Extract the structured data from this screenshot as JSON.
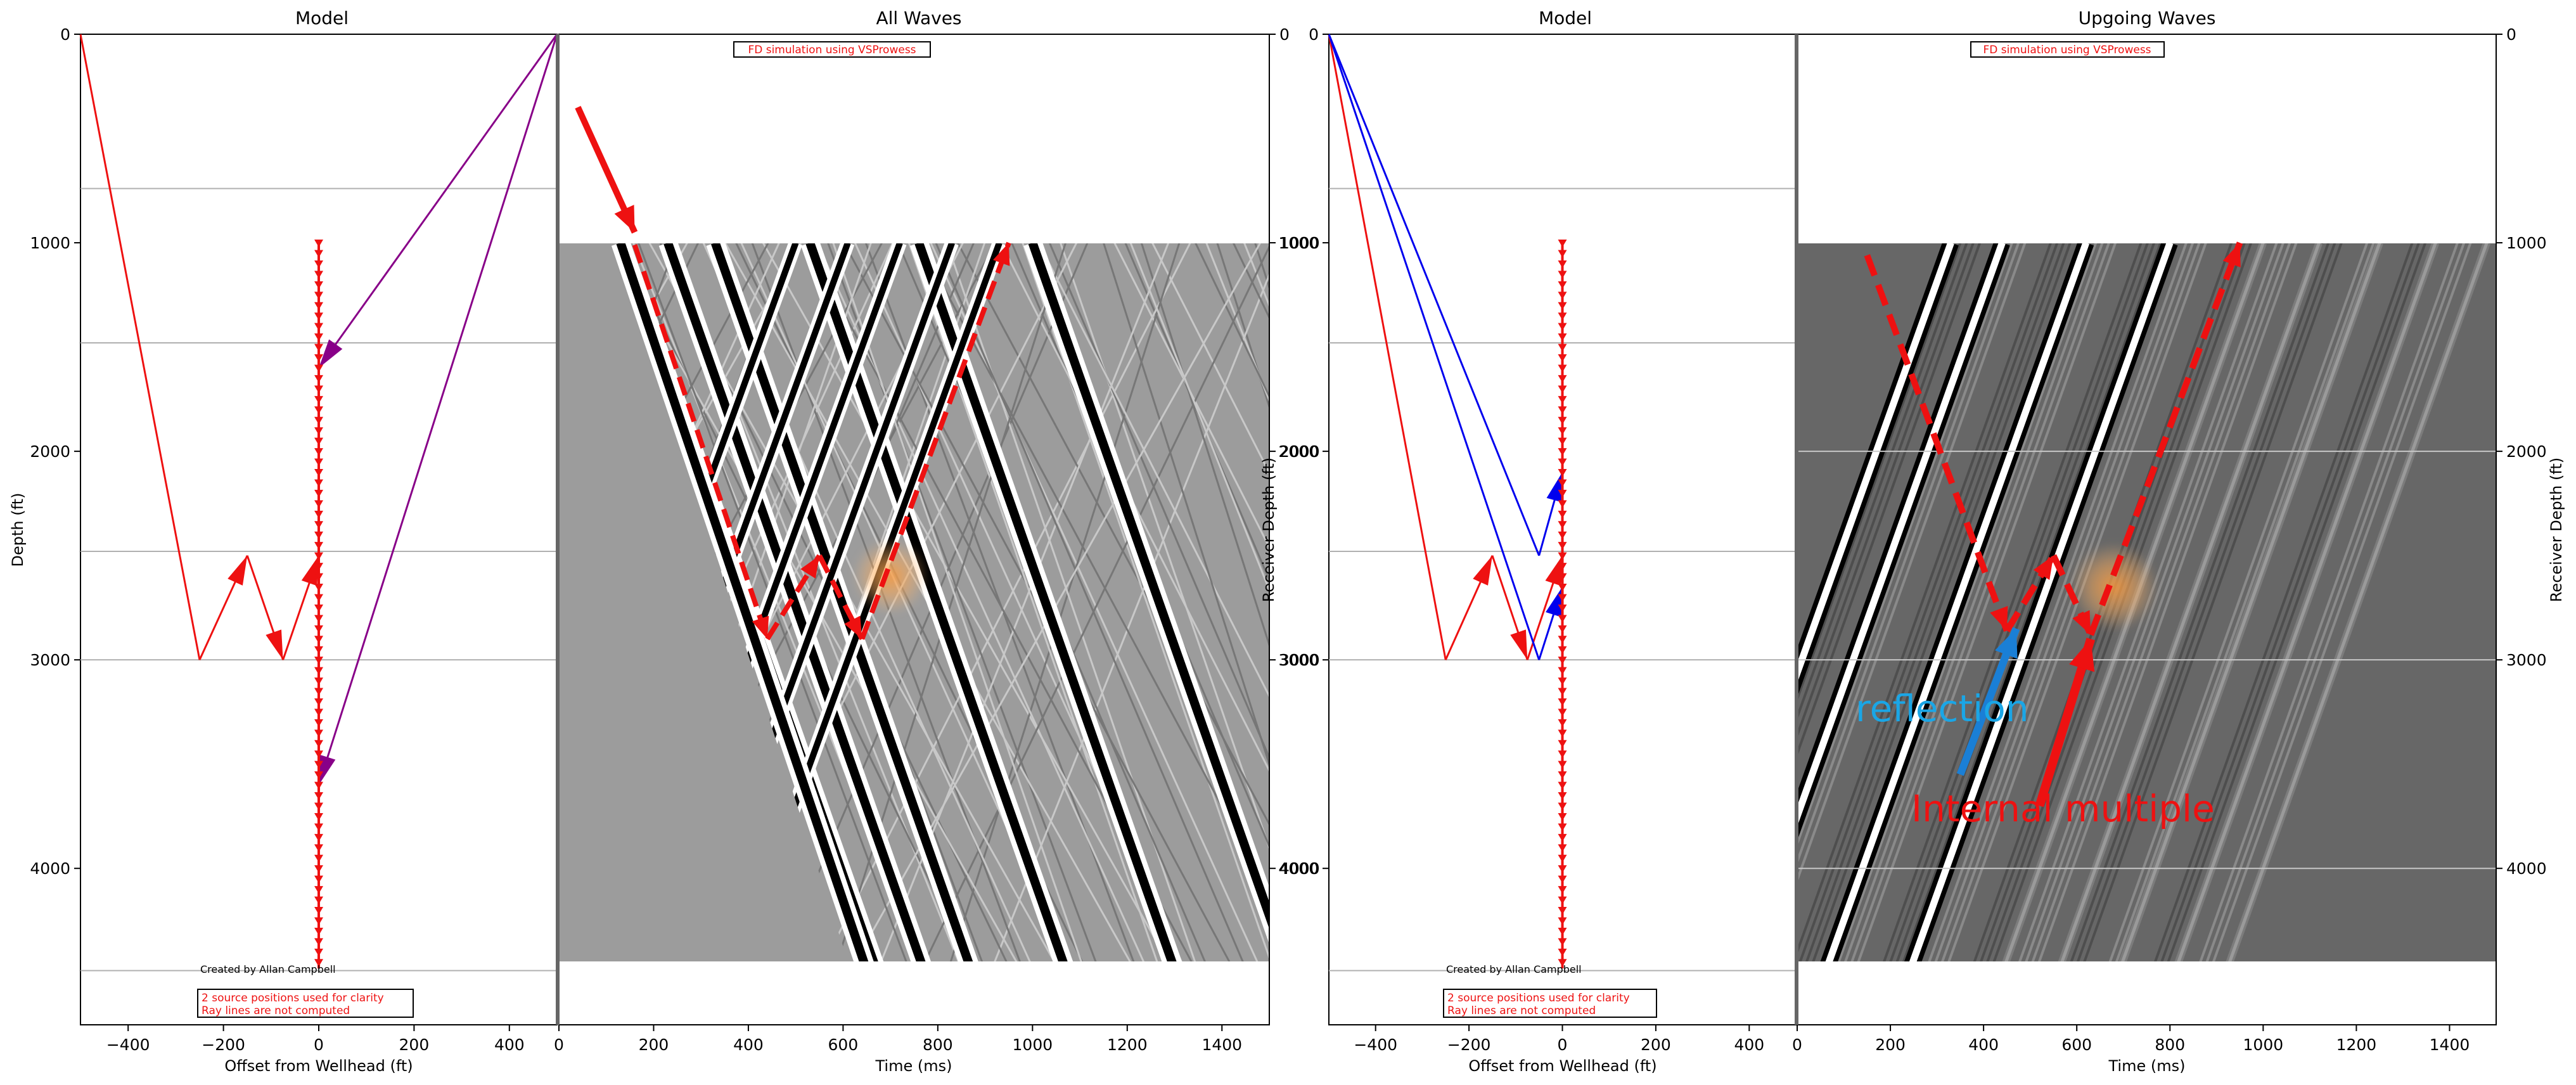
{
  "chart_data": [
    {
      "type": "scatter",
      "panel": "model-left",
      "title": "Model",
      "xlabel": "Offset from Wellhead (ft)",
      "ylabel": "Depth (ft)",
      "xlim": [
        -500,
        500
      ],
      "ylim": [
        4750,
        0
      ],
      "x_ticks": [
        "−400",
        "−200",
        "0",
        "200",
        "400"
      ],
      "y_ticks": [
        "0",
        "1000",
        "2000",
        "3000",
        "4000"
      ],
      "layer_boundaries": [
        740,
        1480,
        2480,
        3000,
        4490
      ],
      "receivers": {
        "x": 0,
        "depth_start": 1000,
        "depth_end": 4480,
        "spacing": 50
      },
      "rays": [
        {
          "color": "#ee1111",
          "points": [
            [
              -500,
              0
            ],
            [
              -250,
              3000
            ],
            [
              -150,
              2500
            ],
            [
              -75,
              3000
            ],
            [
              0,
              2500
            ]
          ]
        },
        {
          "color": "#880088",
          "points": [
            [
              500,
              0
            ],
            [
              0,
              1600
            ]
          ]
        },
        {
          "color": "#880088",
          "points": [
            [
              500,
              0
            ],
            [
              0,
              3600
            ]
          ]
        }
      ],
      "credit": "Created by Allan Campbell",
      "note_lines": [
        "2 source positions used for clarity",
        "Ray lines are not computed"
      ]
    },
    {
      "type": "heatmap",
      "panel": "all-waves",
      "title": "All Waves",
      "xlabel": "Time (ms)",
      "xlim": [
        0,
        1500
      ],
      "ylim": [
        4750,
        0
      ],
      "x_ticks": [
        "0",
        "200",
        "400",
        "600",
        "800",
        "1000",
        "1200",
        "1400"
      ],
      "data_extent_depth": [
        1000,
        4490
      ],
      "banner": "FD simulation using VSProwess",
      "events_down": [
        [
          130,
          1000
        ],
        [
          230,
          1000
        ],
        [
          330,
          1000
        ],
        [
          530,
          1000
        ],
        [
          760,
          1000
        ],
        [
          1000,
          1000
        ]
      ],
      "events_up": [
        [
          930,
          1000
        ],
        [
          830,
          1000
        ],
        [
          720,
          1000
        ],
        [
          610,
          1000
        ],
        [
          500,
          1000
        ]
      ],
      "annotations": {
        "path": [
          [
            160,
            1010
          ],
          [
            440,
            2900
          ],
          [
            550,
            2500
          ],
          [
            640,
            2900
          ],
          [
            950,
            1000
          ]
        ],
        "arrow": [
          [
            40,
            350
          ],
          [
            160,
            950
          ]
        ],
        "glow": [
          700,
          2600
        ]
      }
    },
    {
      "type": "scatter",
      "panel": "model-right",
      "title": "Model",
      "xlabel": "Offset from Wellhead (ft)",
      "ylabel": "Receiver Depth (ft)",
      "xlim": [
        -500,
        500
      ],
      "ylim": [
        4750,
        0
      ],
      "x_ticks": [
        "−400",
        "−200",
        "0",
        "200",
        "400"
      ],
      "y_ticks": [
        "0",
        "1000",
        "2000",
        "3000",
        "4000"
      ],
      "layer_boundaries": [
        740,
        1480,
        2480,
        3000,
        4490
      ],
      "receivers": {
        "x": 0,
        "depth_start": 1000,
        "depth_end": 4480,
        "spacing": 50
      },
      "rays": [
        {
          "color": "#ee1111",
          "points": [
            [
              -500,
              0
            ],
            [
              -250,
              3000
            ],
            [
              -150,
              2500
            ],
            [
              -75,
              3000
            ],
            [
              0,
              2500
            ]
          ]
        },
        {
          "color": "#0000ee",
          "points": [
            [
              -500,
              0
            ],
            [
              -50,
              2500
            ],
            [
              0,
              2100
            ]
          ]
        },
        {
          "color": "#0000ee",
          "points": [
            [
              -500,
              0
            ],
            [
              -50,
              3000
            ],
            [
              0,
              2650
            ]
          ]
        }
      ],
      "credit": "Created by Allan Campbell",
      "note_lines": [
        "2 source positions used for clarity",
        "Ray lines are not computed"
      ]
    },
    {
      "type": "heatmap",
      "panel": "upgoing-waves",
      "title": "Upgoing Waves",
      "xlabel": "Time (ms)",
      "ylabel": "Receiver Depth (ft)",
      "xlim": [
        0,
        1500
      ],
      "ylim": [
        4750,
        0
      ],
      "x_ticks": [
        "0",
        "200",
        "400",
        "600",
        "800",
        "1000",
        "1200",
        "1400"
      ],
      "y_ticks": [
        "0",
        "1000",
        "2000",
        "3000",
        "4000"
      ],
      "data_extent_depth": [
        1000,
        4490
      ],
      "banner": "FD simulation using VSProwess",
      "events_up": [
        [
          330,
          1000
        ],
        [
          440,
          1000
        ],
        [
          620,
          1000
        ],
        [
          800,
          1000
        ],
        [
          1000,
          1000
        ],
        [
          1120,
          1000
        ],
        [
          1250,
          1000
        ],
        [
          1370,
          1000
        ],
        [
          1480,
          1000
        ]
      ],
      "annotations": {
        "path": [
          [
            150,
            1060
          ],
          [
            450,
            2860
          ],
          [
            550,
            2500
          ],
          [
            630,
            2880
          ],
          [
            950,
            1000
          ]
        ],
        "glow": [
          680,
          2650
        ],
        "reflection_arrow": [
          [
            350,
            3550
          ],
          [
            470,
            2850
          ]
        ],
        "multiple_arrow": [
          [
            520,
            3700
          ],
          [
            630,
            2900
          ]
        ],
        "labels": {
          "reflection": "reflection",
          "multiple": "Internal multiple"
        }
      }
    }
  ]
}
